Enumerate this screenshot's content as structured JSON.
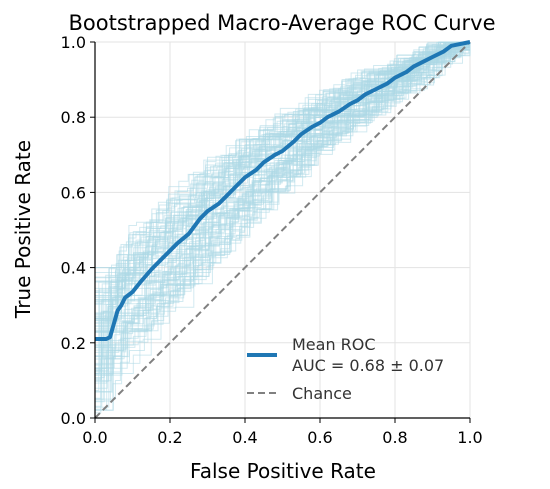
{
  "chart_data": {
    "type": "line",
    "title": "Bootstrapped Macro-Average ROC Curve",
    "xlabel": "False Positive Rate",
    "ylabel": "True Positive Rate",
    "xlim": [
      0.0,
      1.0
    ],
    "ylim": [
      0.0,
      1.0
    ],
    "x_ticks": [
      0.0,
      0.2,
      0.4,
      0.6,
      0.8,
      1.0
    ],
    "y_ticks": [
      0.0,
      0.2,
      0.4,
      0.6,
      0.8,
      1.0
    ],
    "x_tick_labels": [
      "0.0",
      "0.2",
      "0.4",
      "0.6",
      "0.8",
      "1.0"
    ],
    "y_tick_labels": [
      "0.0",
      "0.2",
      "0.4",
      "0.6",
      "0.8",
      "1.0"
    ],
    "grid": true,
    "legend_position": "bottom-right",
    "colors": {
      "mean": "#1f77b4",
      "bootstrap": "#add8e6",
      "chance": "#808080"
    },
    "series": [
      {
        "name": "Mean ROC",
        "legend_label": "Mean ROC\nAUC = 0.68 ± 0.07",
        "legend_line1": "Mean ROC",
        "legend_line2": "AUC = 0.68 ± 0.07",
        "x": [
          0.0,
          0.03,
          0.04,
          0.05,
          0.06,
          0.07,
          0.08,
          0.1,
          0.12,
          0.15,
          0.18,
          0.2,
          0.22,
          0.25,
          0.28,
          0.3,
          0.33,
          0.35,
          0.38,
          0.4,
          0.43,
          0.45,
          0.48,
          0.5,
          0.53,
          0.55,
          0.58,
          0.6,
          0.62,
          0.65,
          0.68,
          0.7,
          0.72,
          0.75,
          0.78,
          0.8,
          0.83,
          0.85,
          0.88,
          0.9,
          0.93,
          0.95,
          1.0
        ],
        "y": [
          0.21,
          0.21,
          0.215,
          0.25,
          0.285,
          0.3,
          0.32,
          0.335,
          0.36,
          0.395,
          0.425,
          0.445,
          0.465,
          0.49,
          0.53,
          0.55,
          0.57,
          0.59,
          0.62,
          0.64,
          0.66,
          0.68,
          0.7,
          0.71,
          0.735,
          0.755,
          0.775,
          0.785,
          0.8,
          0.815,
          0.835,
          0.845,
          0.86,
          0.875,
          0.89,
          0.905,
          0.92,
          0.935,
          0.95,
          0.96,
          0.975,
          0.99,
          1.0
        ]
      },
      {
        "name": "Chance",
        "legend_label": "Chance",
        "x": [
          0.0,
          1.0
        ],
        "y": [
          0.0,
          1.0
        ]
      }
    ]
  }
}
